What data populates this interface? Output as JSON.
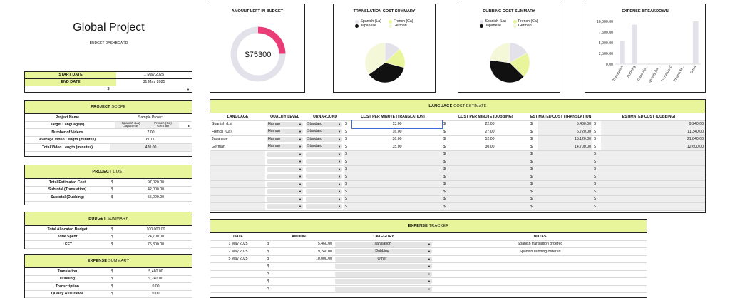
{
  "header": {
    "title": "Global Project",
    "subtitle": "BUDGET DASHBOARD"
  },
  "dates": {
    "start_label": "START DATE",
    "start_value": "1 May 2025",
    "end_label": "END DATE",
    "end_value": "31 May 2025",
    "currency": "$"
  },
  "scope": {
    "title_a": "PROJECT",
    "title_b": "SCOPE",
    "rows": [
      {
        "label": "Project Name",
        "value": "Sample Project"
      },
      {
        "label": "Target Language(s)",
        "value": "Spanish (La), French (Ca), Japanese, German",
        "chips": [
          "Spanish (La)",
          "French (Ca)",
          "Japanese",
          "German"
        ]
      },
      {
        "label": "Number of Videos",
        "value": "7.00"
      },
      {
        "label": "Average Video Length (minutes)",
        "value": "60.00"
      },
      {
        "label": "Total Video Length (minutes)",
        "value": "420.00"
      }
    ]
  },
  "cost": {
    "title_a": "PROJECT",
    "title_b": "COST",
    "rows": [
      {
        "label": "Total Estimated Cost",
        "cur": "$",
        "value": "97,020.00"
      },
      {
        "label": "Subtotal (Translation)",
        "cur": "$",
        "value": "42,000.00"
      },
      {
        "label": "Subtotal (Dubbing)",
        "cur": "$",
        "value": "55,020.00"
      }
    ]
  },
  "budget": {
    "title_a": "BUDGET",
    "title_b": "SUMMARY",
    "rows": [
      {
        "label": "Total Allocated Budget",
        "cur": "$",
        "value": "100,000.00"
      },
      {
        "label": "Total Spent",
        "cur": "$",
        "value": "24,700.00"
      },
      {
        "label": "LEFT",
        "cur": "$",
        "value": "75,300.00"
      }
    ]
  },
  "expense_summary": {
    "title_a": "EXPENSE",
    "title_b": "SUMMARY",
    "rows": [
      {
        "label": "Translation",
        "cur": "$",
        "value": "5,460.00"
      },
      {
        "label": "Dubbing",
        "cur": "$",
        "value": "9,240.00"
      },
      {
        "label": "Transcription",
        "cur": "$",
        "value": "0.00"
      },
      {
        "label": "Quality Assurance",
        "cur": "$",
        "value": "0.00"
      }
    ]
  },
  "amount_left": {
    "title": "AMOUNT LEFT IN BUDGET",
    "value": "$75300",
    "fraction": 0.247
  },
  "translation_chart": {
    "title": "TRANSLATION COST SUMMARY",
    "legend": [
      "Spanish (La)",
      "French (Ca)",
      "Japanese",
      "German"
    ],
    "values": [
      13,
      16,
      36,
      35
    ],
    "colors": [
      "#e3e1ea",
      "#e9f59a",
      "#111111",
      "#f4f8d8"
    ]
  },
  "dubbing_chart": {
    "title": "DUBBING COST SUMMARY",
    "legend": [
      "Spanish (La)",
      "French (Ca)",
      "Japanese",
      "German"
    ],
    "values": [
      22,
      27,
      52,
      30
    ],
    "colors": [
      "#e3e1ea",
      "#e9f59a",
      "#111111",
      "#f4f8d8"
    ]
  },
  "chart_data": {
    "type": "bar",
    "title": "EXPENSE BREAKDOWN",
    "categories": [
      "Translation",
      "Dubbing",
      "Transcrip...",
      "Quality As...",
      "Turnaround",
      "Project M...",
      "Other"
    ],
    "values": [
      5460,
      9240,
      0,
      0,
      0,
      0,
      10000
    ],
    "yticks": [
      "10,000.00",
      "7,500.00",
      "5,000.00",
      "2,500.00",
      "0.00"
    ],
    "ylim": [
      0,
      10000
    ],
    "color": "#e3e1ea"
  },
  "lang_estimate": {
    "title_a": "LANGUAGE",
    "title_b": "COST ESTIMATE",
    "headers": [
      "LANGUAGE",
      "QUALITY LEVEL",
      "TURNAROUND",
      "COST PER MINUTE (TRANSLATION)",
      "COST PER MINUTE (DUBBING)",
      "ESTIMATED COST (TRANSLATION)",
      "ESTIMATED COST (DUBBING)"
    ],
    "rows": [
      {
        "lang": "Spanish (La)",
        "quality": "Human",
        "turn": "Standard",
        "cpt": "13.00",
        "cpd": "22.00",
        "ect": "5,460.00",
        "ecd": "9,240.00"
      },
      {
        "lang": "French (Ca)",
        "quality": "Human",
        "turn": "Standard",
        "cpt": "16.00",
        "cpd": "27.00",
        "ect": "6,720.00",
        "ecd": "11,340.00"
      },
      {
        "lang": "Japanese",
        "quality": "Human",
        "turn": "Standard",
        "cpt": "36.00",
        "cpd": "52.00",
        "ect": "15,120.00",
        "ecd": "21,840.00"
      },
      {
        "lang": "German",
        "quality": "Human",
        "turn": "Standard",
        "cpt": "35.00",
        "cpd": "30.00",
        "ect": "14,700.00",
        "ecd": "12,600.00"
      }
    ],
    "empty_rows": 8,
    "cur": "$"
  },
  "tracker": {
    "title_a": "EXPENSE",
    "title_b": "TRACKER",
    "headers": [
      "DATE",
      "AMOUNT",
      "CATEGORY",
      "NOTES"
    ],
    "rows": [
      {
        "date": "1 May 2025",
        "cur": "$",
        "amount": "5,460.00",
        "category": "Translation",
        "notes": "Spanish translation ordered"
      },
      {
        "date": "2 May 2025",
        "cur": "$",
        "amount": "9,240.00",
        "category": "Dubbing",
        "notes": "Spanish dubbing ordered"
      },
      {
        "date": "5 May 2025",
        "cur": "$",
        "amount": "10,000.00",
        "category": "Other",
        "notes": ""
      }
    ],
    "empty_rows": 4
  }
}
